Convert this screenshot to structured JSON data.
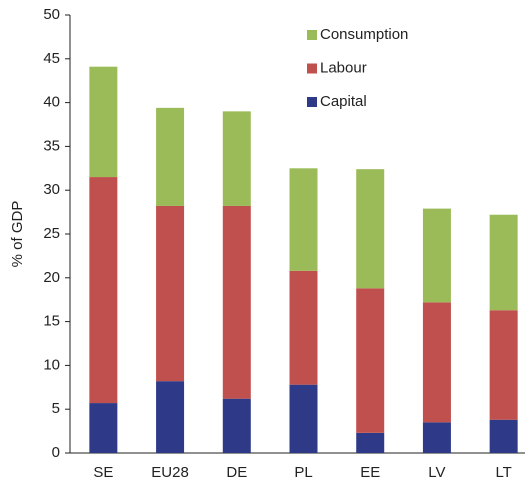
{
  "chart_data": {
    "type": "stacked_bar",
    "y_label": "% of GDP",
    "categories": [
      "SE",
      "EU28",
      "DE",
      "PL",
      "EE",
      "LV",
      "LT"
    ],
    "series": [
      {
        "name": "Capital",
        "color": "#2e3a87",
        "values": [
          5.7,
          8.2,
          6.2,
          7.8,
          2.3,
          3.5,
          3.8
        ]
      },
      {
        "name": "Labour",
        "color": "#c0504d",
        "values": [
          25.8,
          20.0,
          22.0,
          13.0,
          16.5,
          13.7,
          12.5
        ]
      },
      {
        "name": "Consumption",
        "color": "#9bbb59",
        "values": [
          12.6,
          11.2,
          10.8,
          11.7,
          13.6,
          10.7,
          10.9
        ]
      }
    ],
    "ylim": [
      0,
      50
    ],
    "yticks": [
      0,
      5,
      10,
      15,
      20,
      25,
      30,
      35,
      40,
      45,
      50
    ]
  }
}
